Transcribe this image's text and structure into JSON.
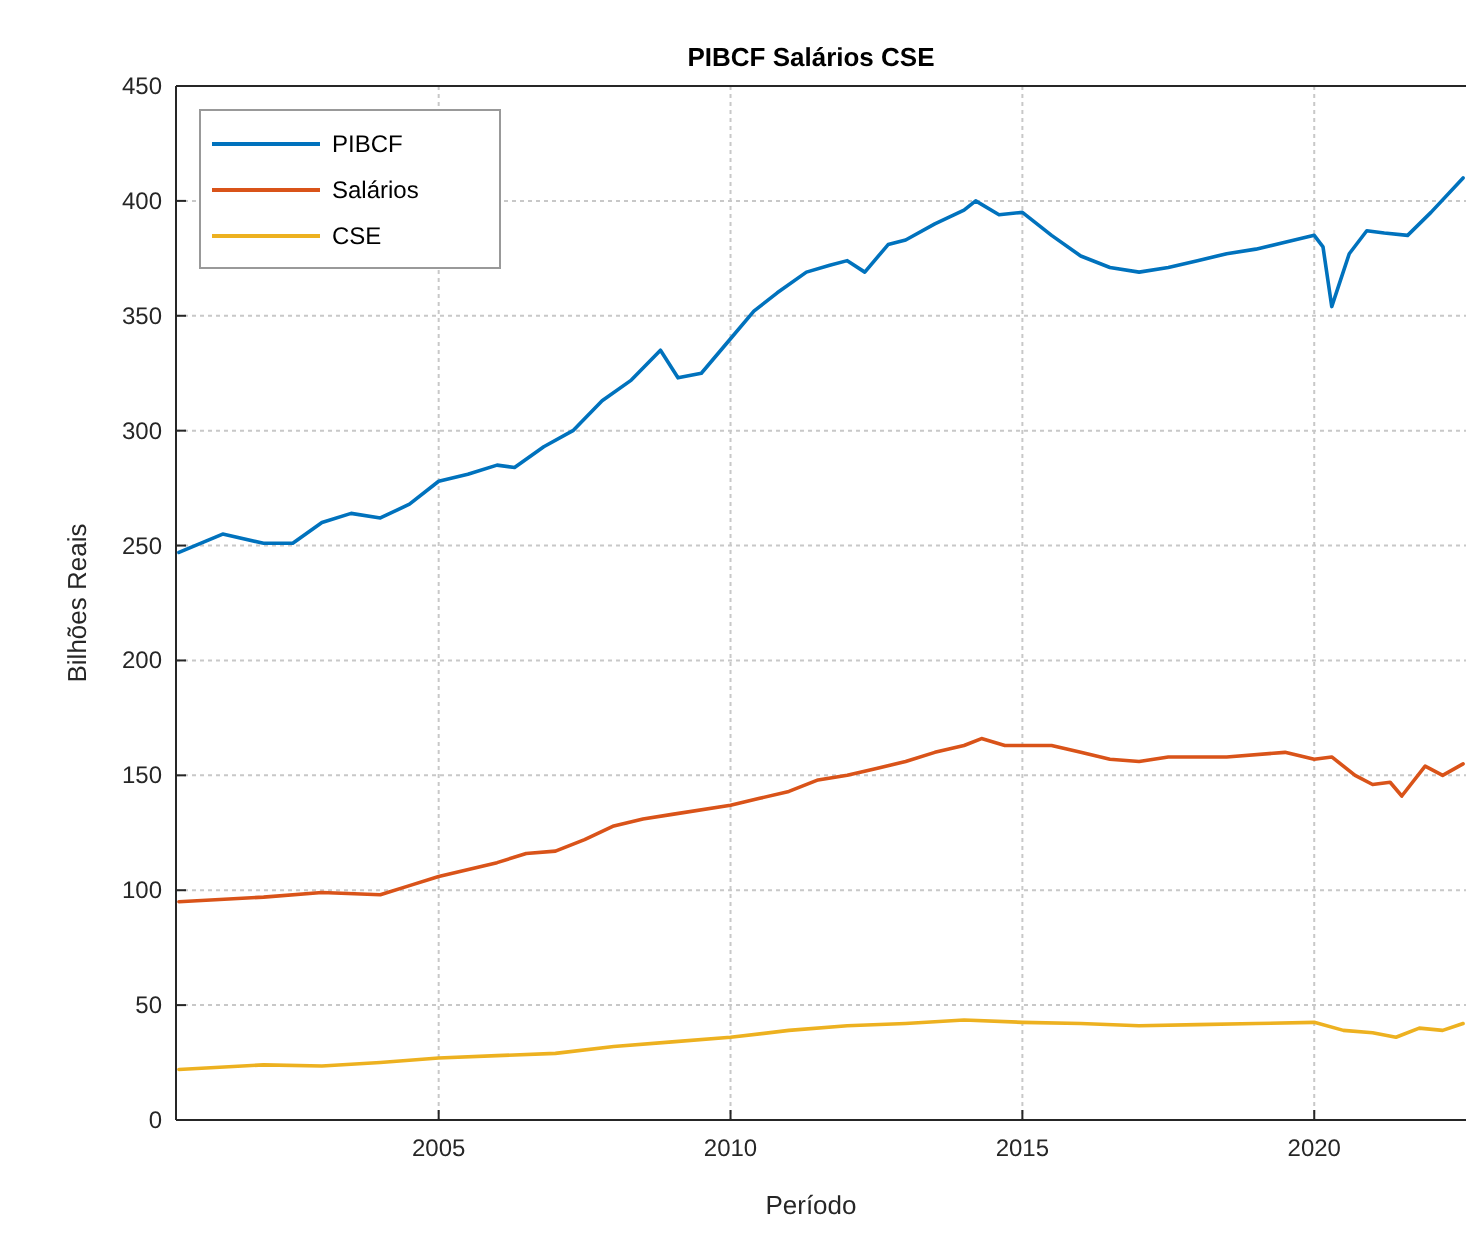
{
  "chart_data": {
    "type": "line",
    "title": "PIBCF Salários CSE",
    "xlabel": "Período",
    "ylabel": "Bilhões Reais",
    "xlim": [
      2000.5,
      2022.6
    ],
    "xticks": [
      2005,
      2010,
      2015,
      2020
    ],
    "ylim": [
      0,
      450
    ],
    "yticks": [
      0,
      50,
      100,
      150,
      200,
      250,
      300,
      350,
      400,
      450
    ],
    "grid": true,
    "legend": "top left",
    "line_style": "solid",
    "marker": "none",
    "series": [
      {
        "name": "PIBCF",
        "color": "#0072bd",
        "x": [
          2000.55,
          2001.3,
          2002,
          2002.5,
          2003,
          2003.5,
          2004,
          2004.5,
          2005,
          2005.5,
          2006,
          2006.3,
          2006.8,
          2007.3,
          2007.8,
          2008.3,
          2008.8,
          2009.1,
          2009.5,
          2010,
          2010.4,
          2010.8,
          2011.3,
          2011.7,
          2012,
          2012.3,
          2012.7,
          2013,
          2013.5,
          2014,
          2014.2,
          2014.6,
          2015,
          2015.5,
          2016,
          2016.5,
          2017,
          2017.5,
          2018,
          2018.5,
          2019,
          2019.5,
          2020,
          2020.15,
          2020.3,
          2020.6,
          2020.9,
          2021.2,
          2021.6,
          2022,
          2022.55
        ],
        "values": [
          247,
          255,
          251,
          251,
          260,
          264,
          262,
          268,
          278,
          281,
          285,
          284,
          293,
          300,
          313,
          322,
          335,
          323,
          325,
          340,
          352,
          360,
          369,
          372,
          374,
          369,
          381,
          383,
          390,
          396,
          400,
          394,
          395,
          385,
          376,
          371,
          369,
          371,
          374,
          377,
          379,
          382,
          385,
          380,
          354,
          377,
          387,
          386,
          385,
          395,
          410
        ]
      },
      {
        "name": "Salários",
        "color": "#d95319",
        "x": [
          2000.55,
          2002,
          2003,
          2004,
          2004.5,
          2005,
          2006,
          2006.5,
          2007,
          2007.5,
          2008,
          2008.5,
          2009,
          2010,
          2010.5,
          2011,
          2011.5,
          2012,
          2012.5,
          2013,
          2013.5,
          2014,
          2014.3,
          2014.7,
          2015.5,
          2016,
          2016.5,
          2017,
          2017.5,
          2018.5,
          2019.5,
          2020,
          2020.3,
          2020.7,
          2021,
          2021.3,
          2021.5,
          2021.9,
          2022.2,
          2022.55
        ],
        "values": [
          95,
          97,
          99,
          98,
          102,
          106,
          112,
          116,
          117,
          122,
          128,
          131,
          133,
          137,
          140,
          143,
          148,
          150,
          153,
          156,
          160,
          163,
          166,
          163,
          163,
          160,
          157,
          156,
          158,
          158,
          160,
          157,
          158,
          150,
          146,
          147,
          141,
          154,
          150,
          155
        ]
      },
      {
        "name": "CSE",
        "color": "#edb120",
        "x": [
          2000.55,
          2002,
          2003,
          2004,
          2005,
          2006,
          2007,
          2008,
          2009,
          2010,
          2011,
          2012,
          2013,
          2014,
          2015,
          2016,
          2017,
          2018,
          2019,
          2020,
          2020.5,
          2021,
          2021.4,
          2021.8,
          2022.2,
          2022.55
        ],
        "values": [
          22,
          24,
          23.5,
          25,
          27,
          28,
          29,
          32,
          34,
          36,
          39,
          41,
          42,
          43.5,
          42.5,
          42,
          41,
          41.5,
          42,
          42.5,
          39,
          38,
          36,
          40,
          39,
          42
        ]
      }
    ]
  }
}
